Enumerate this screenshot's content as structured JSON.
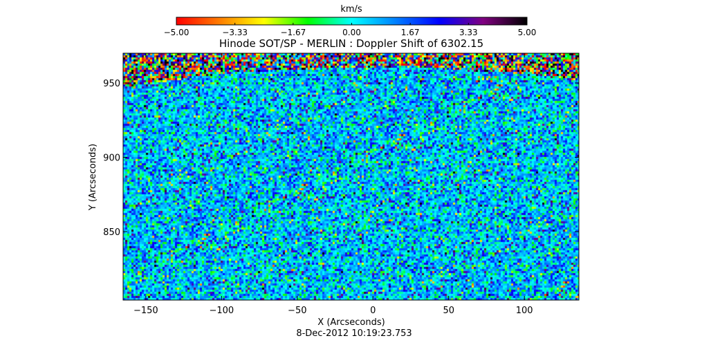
{
  "colorbar": {
    "unit_label": "km/s",
    "range": [
      -5.0,
      5.0
    ],
    "tick_values": [
      -5.0,
      -3.33,
      -1.67,
      0.0,
      1.67,
      3.33,
      5.0
    ],
    "tick_labels": [
      "-5.00",
      "-3.33",
      "-1.67",
      "0.00",
      "1.67",
      "3.33",
      "5.00"
    ],
    "colormap": [
      "#ff0000",
      "#ff7f00",
      "#ffff00",
      "#00ff00",
      "#00ffff",
      "#0080ff",
      "#0000ff",
      "#800080",
      "#000000"
    ]
  },
  "chart_data": {
    "type": "heatmap",
    "title": "Hinode SOT/SP - MERLIN : Doppler Shift of 6302.15",
    "xlabel": "X (Arcseconds)",
    "ylabel": "Y (Arcseconds)",
    "xlim": [
      -165,
      136
    ],
    "ylim": [
      804,
      970
    ],
    "xticks": [
      -150,
      -100,
      -50,
      0,
      50,
      100
    ],
    "xtick_labels": [
      "−150",
      "−100",
      "−50",
      "0",
      "50",
      "100"
    ],
    "yticks": [
      850,
      900,
      950
    ],
    "ytick_labels": [
      "850",
      "900",
      "950"
    ],
    "value_unit": "km/s",
    "value_range": [
      -5.0,
      5.0
    ],
    "limb_y_at_x": [
      [
        -165,
        948
      ],
      [
        -100,
        957
      ],
      [
        -50,
        960
      ],
      [
        0,
        961
      ],
      [
        50,
        960
      ],
      [
        100,
        957
      ],
      [
        136,
        952
      ]
    ],
    "description_values": "Doppler velocity field mostly near 0 km/s (green/cyan) with speckled -2 to +4 km/s granulation; noisy off-limb region above solar limb"
  },
  "footer": {
    "timestamp": "8-Dec-2012 10:19:23.753"
  }
}
